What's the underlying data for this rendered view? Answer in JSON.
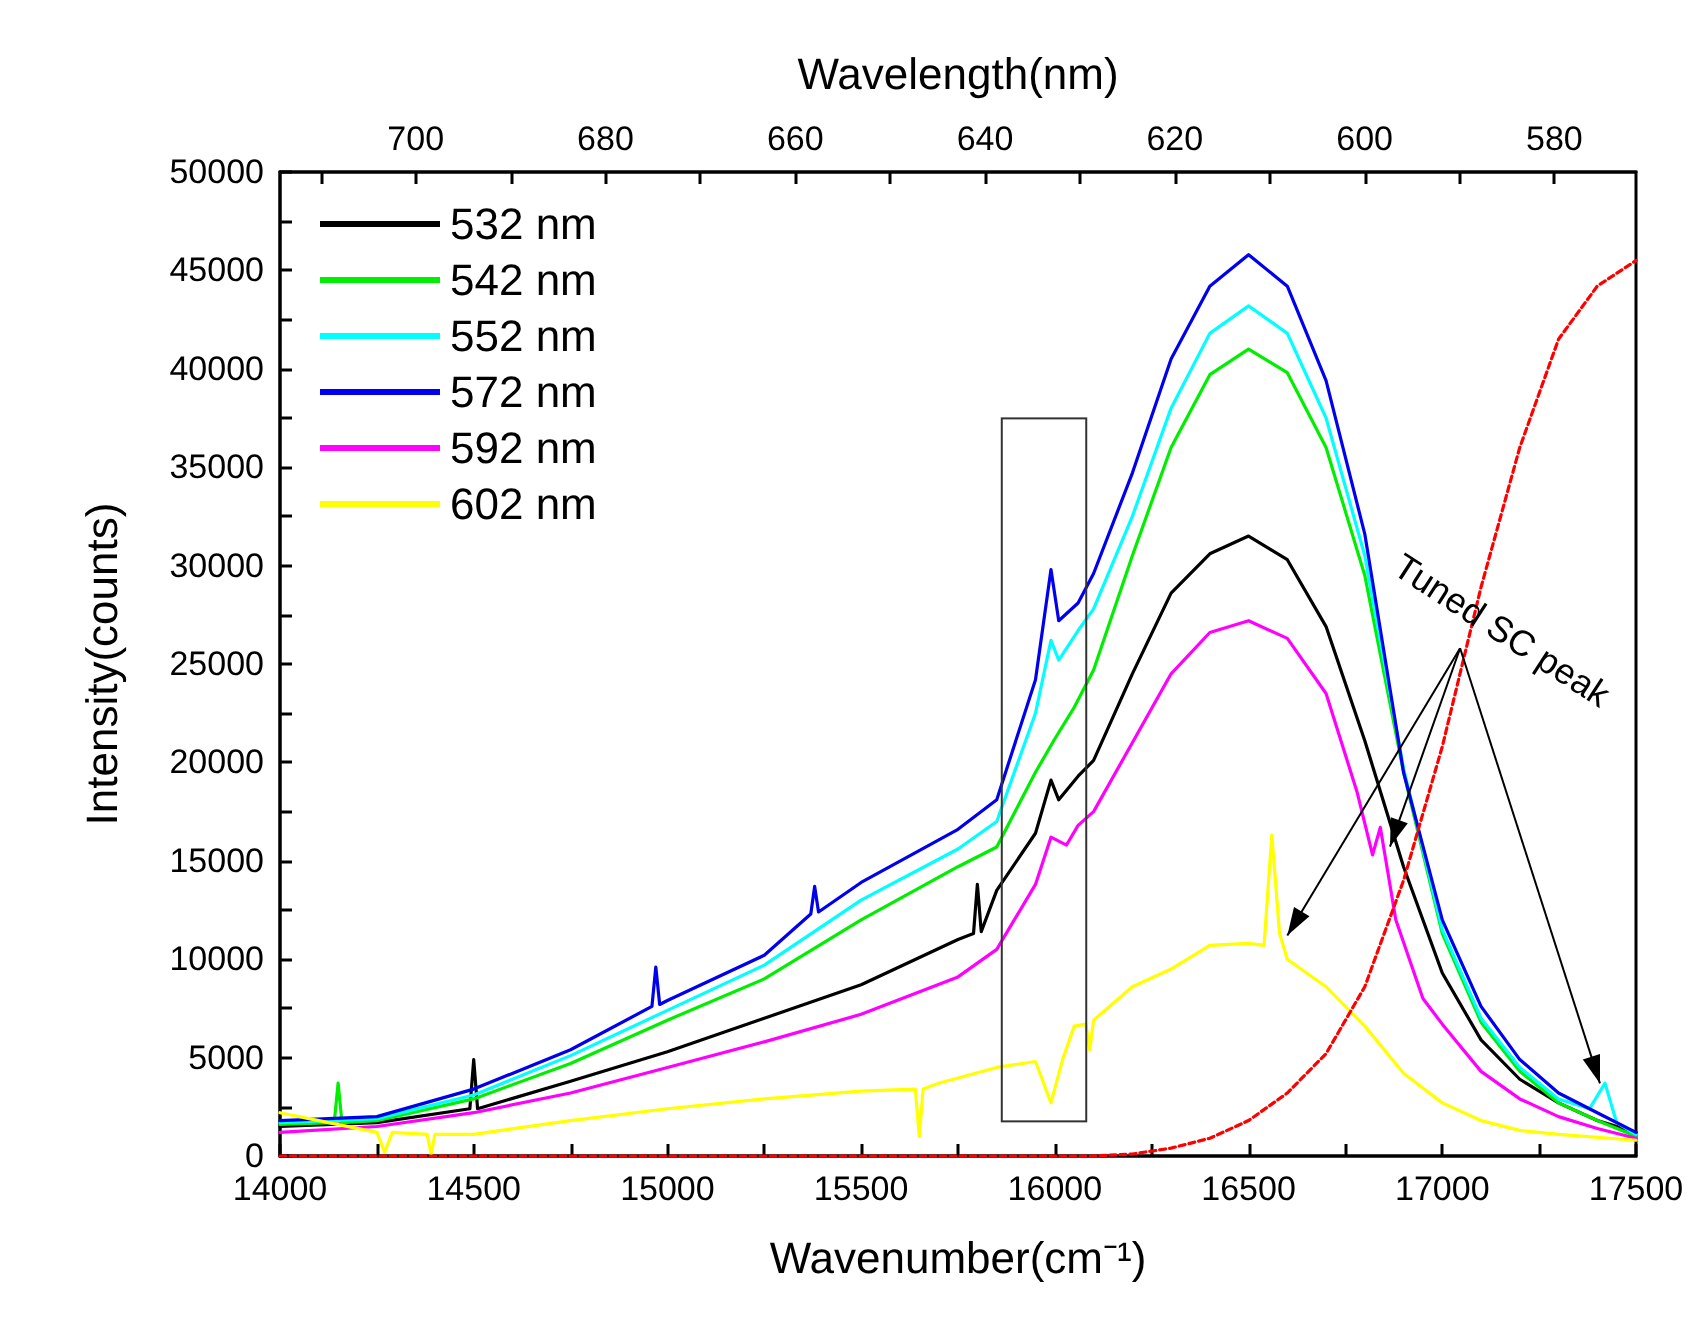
{
  "chart_data": {
    "type": "line",
    "xlabel": "Wavenumber(cm⁻¹)",
    "ylabel": "Intensity(counts)",
    "x2label": "Wavelength(nm)",
    "xlim": [
      14000,
      17500
    ],
    "xticks": [
      14000,
      {
        "value": 14250,
        "label": null
      },
      14500,
      {
        "value": 14750,
        "label": null
      },
      15000,
      {
        "value": 15250,
        "label": null
      },
      15500,
      {
        "value": 15750,
        "label": null
      },
      16000,
      {
        "value": 16250,
        "label": null
      },
      16500,
      {
        "value": 16750,
        "label": null
      },
      17000,
      {
        "value": 17250,
        "label": null
      },
      17500
    ],
    "x2lim": [
      714.3,
      571.4
    ],
    "x2ticks": [
      {
        "value": 710,
        "label": null
      },
      700,
      {
        "value": 690,
        "label": null
      },
      680,
      {
        "value": 670,
        "label": null
      },
      660,
      {
        "value": 650,
        "label": null
      },
      640,
      {
        "value": 630,
        "label": null
      },
      620,
      {
        "value": 610,
        "label": null
      },
      600,
      {
        "value": 590,
        "label": null
      },
      580
    ],
    "ylim": [
      0,
      50000
    ],
    "yticks": [
      0,
      {
        "value": 2500,
        "label": null
      },
      5000,
      {
        "value": 7500,
        "label": null
      },
      10000,
      {
        "value": 12500,
        "label": null
      },
      15000,
      {
        "value": 17500,
        "label": null
      },
      20000,
      {
        "value": 22500,
        "label": null
      },
      25000,
      {
        "value": 27500,
        "label": null
      },
      30000,
      {
        "value": 32500,
        "label": null
      },
      35000,
      {
        "value": 37500,
        "label": null
      },
      40000,
      {
        "value": 42500,
        "label": null
      },
      45000,
      {
        "value": 47500,
        "label": null
      },
      50000
    ],
    "grid": false,
    "legend": "top left",
    "marker": "none",
    "annotations": [
      {
        "text": "Tuned SC peak",
        "x": 16600,
        "y": 11200
      }
    ],
    "series": [
      {
        "name": "532 nm",
        "color": "#000000",
        "x": [
          14000,
          14250,
          14490,
          14500,
          14510,
          14750,
          15000,
          15250,
          15500,
          15750,
          15790,
          15800,
          15810,
          15850,
          15950,
          15990,
          16010,
          16060,
          16100,
          16200,
          16300,
          16400,
          16500,
          16600,
          16700,
          16800,
          16900,
          17000,
          17100,
          17200,
          17300,
          17400,
          17500
        ],
        "values": [
          1500,
          1700,
          2400,
          4900,
          2400,
          3800,
          5300,
          7000,
          8700,
          11000,
          11300,
          13800,
          11400,
          13500,
          16400,
          19100,
          18100,
          19300,
          20100,
          24500,
          28600,
          30600,
          31500,
          30300,
          26900,
          21100,
          14700,
          9300,
          5900,
          3900,
          2700,
          1800,
          1200
        ]
      },
      {
        "name": "542 nm",
        "color": "#00ee00",
        "x": [
          14000,
          14140,
          14150,
          14160,
          14250,
          14500,
          14750,
          15000,
          15250,
          15500,
          15750,
          15850,
          15950,
          16000,
          16050,
          16100,
          16200,
          16300,
          16400,
          16500,
          16600,
          16700,
          16800,
          16900,
          17000,
          17100,
          17200,
          17300,
          17400,
          17500
        ],
        "values": [
          1600,
          1700,
          3700,
          1700,
          1800,
          2900,
          4700,
          6900,
          9000,
          12000,
          14700,
          15700,
          19500,
          21200,
          22800,
          24700,
          30500,
          36000,
          39700,
          41000,
          39800,
          36000,
          29500,
          19500,
          11300,
          6800,
          4300,
          2700,
          1800,
          1000
        ]
      },
      {
        "name": "552 nm",
        "color": "#00ffff",
        "x": [
          14000,
          14250,
          14500,
          14750,
          15000,
          15250,
          15500,
          15750,
          15850,
          15950,
          15990,
          16010,
          16060,
          16100,
          16200,
          16300,
          16400,
          16500,
          16600,
          16700,
          16800,
          16900,
          17000,
          17100,
          17200,
          17300,
          17380,
          17420,
          17450,
          17500
        ],
        "values": [
          1700,
          1900,
          3100,
          5100,
          7400,
          9700,
          13000,
          15600,
          17000,
          22500,
          26200,
          25200,
          26700,
          27800,
          32500,
          38000,
          41800,
          43200,
          41800,
          37500,
          30500,
          19700,
          11500,
          7000,
          4500,
          2900,
          2400,
          3700,
          1700,
          1100
        ]
      },
      {
        "name": "572 nm",
        "color": "#0000ee",
        "x": [
          14000,
          14250,
          14500,
          14750,
          14960,
          14970,
          14980,
          15000,
          15250,
          15370,
          15380,
          15390,
          15500,
          15750,
          15850,
          15950,
          15990,
          16010,
          16060,
          16100,
          16200,
          16300,
          16400,
          16500,
          16600,
          16700,
          16800,
          16900,
          17000,
          17100,
          17200,
          17300,
          17400,
          17500
        ],
        "values": [
          1800,
          2000,
          3400,
          5400,
          7600,
          9600,
          7700,
          7900,
          10200,
          12300,
          13700,
          12400,
          13900,
          16600,
          18100,
          24200,
          29800,
          27200,
          28100,
          29600,
          34700,
          40500,
          44200,
          45800,
          44200,
          39400,
          31600,
          19500,
          12000,
          7600,
          4900,
          3200,
          2200,
          1200
        ]
      },
      {
        "name": "592 nm",
        "color": "#ff00ff",
        "x": [
          14000,
          14250,
          14500,
          14750,
          15000,
          15250,
          15500,
          15750,
          15850,
          15950,
          15990,
          16030,
          16060,
          16100,
          16200,
          16300,
          16400,
          16500,
          16600,
          16700,
          16780,
          16820,
          16840,
          16880,
          16950,
          17000,
          17100,
          17200,
          17300,
          17400,
          17500
        ],
        "values": [
          1200,
          1500,
          2200,
          3200,
          4500,
          5800,
          7200,
          9100,
          10500,
          13800,
          16200,
          15800,
          16800,
          17500,
          21000,
          24500,
          26600,
          27200,
          26300,
          23500,
          18500,
          15300,
          16700,
          12000,
          8000,
          6700,
          4300,
          2900,
          2000,
          1400,
          900
        ]
      },
      {
        "name": "602 nm",
        "color": "#ffff00",
        "x": [
          14000,
          14100,
          14250,
          14270,
          14290,
          14380,
          14390,
          14400,
          14500,
          14750,
          15000,
          15250,
          15500,
          15640,
          15650,
          15660,
          15700,
          15850,
          15950,
          15990,
          16020,
          16050,
          16080,
          16090,
          16100,
          16200,
          16300,
          16400,
          16500,
          16540,
          16560,
          16580,
          16600,
          16700,
          16800,
          16900,
          17000,
          17100,
          17200,
          17300,
          17500
        ],
        "values": [
          2200,
          1800,
          1200,
          200,
          1200,
          1100,
          100,
          1100,
          1100,
          1800,
          2400,
          2900,
          3300,
          3400,
          1000,
          3400,
          3700,
          4500,
          4800,
          2700,
          4900,
          6600,
          6700,
          5400,
          6900,
          8600,
          9500,
          10700,
          10800,
          10700,
          16300,
          11300,
          10000,
          8600,
          6600,
          4200,
          2700,
          1800,
          1300,
          1100,
          800
        ]
      },
      {
        "color": "#ff0000",
        "line_style": "dashed",
        "x": [
          14000,
          15900,
          16100,
          16200,
          16300,
          16400,
          16500,
          16600,
          16700,
          16800,
          16900,
          17000,
          17100,
          17200,
          17300,
          17400,
          17500
        ],
        "values": [
          0,
          0,
          0,
          100,
          400,
          900,
          1800,
          3200,
          5200,
          8600,
          14000,
          20800,
          28900,
          36000,
          41500,
          44200,
          45500
        ]
      }
    ]
  }
}
